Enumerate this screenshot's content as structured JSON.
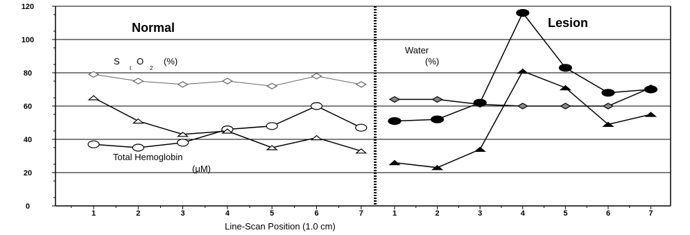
{
  "chart_data": {
    "type": "line",
    "xlabel": "Line-Scan Position (1.0 cm)",
    "ylim": [
      0,
      120
    ],
    "yticks": [
      0,
      20,
      40,
      60,
      80,
      100,
      120
    ],
    "x": [
      1,
      2,
      3,
      4,
      5,
      6,
      7
    ],
    "grid": "horizontal",
    "panels": [
      {
        "title": "Normal",
        "annotations": {
          "sto2": {
            "s": "S",
            "t": "t",
            "o": "O",
            "two": "2",
            "unit": "(%)"
          },
          "hemoglobin": {
            "line1": "Total Hemoglobin",
            "line2": "(μM)"
          }
        },
        "series": [
          {
            "id": "sto2",
            "marker": "diamond-open",
            "color": "#666666",
            "values": [
              79,
              75,
              73,
              75,
              72,
              78,
              73
            ]
          },
          {
            "id": "total-hemoglobin",
            "marker": "circle-open",
            "color": "#000000",
            "values": [
              37,
              35,
              38,
              46,
              48,
              60,
              47
            ]
          },
          {
            "id": "water",
            "marker": "triangle-open",
            "color": "#000000",
            "values": [
              65,
              51,
              43,
              45,
              35,
              41,
              33
            ]
          }
        ]
      },
      {
        "title": "Lesion",
        "annotations": {
          "water": {
            "line1": "Water",
            "line2": "(%)"
          }
        },
        "series": [
          {
            "id": "sto2",
            "marker": "diamond-filled",
            "color": "#000000",
            "values": [
              64,
              64,
              61,
              60,
              60,
              60,
              71
            ]
          },
          {
            "id": "total-hemoglobin",
            "marker": "circle-filled",
            "color": "#000000",
            "values": [
              51,
              52,
              62,
              116,
              83,
              68,
              70
            ]
          },
          {
            "id": "water",
            "marker": "triangle-filled",
            "color": "#000000",
            "values": [
              26,
              23,
              34,
              81,
              71,
              49,
              55
            ]
          }
        ]
      }
    ]
  }
}
